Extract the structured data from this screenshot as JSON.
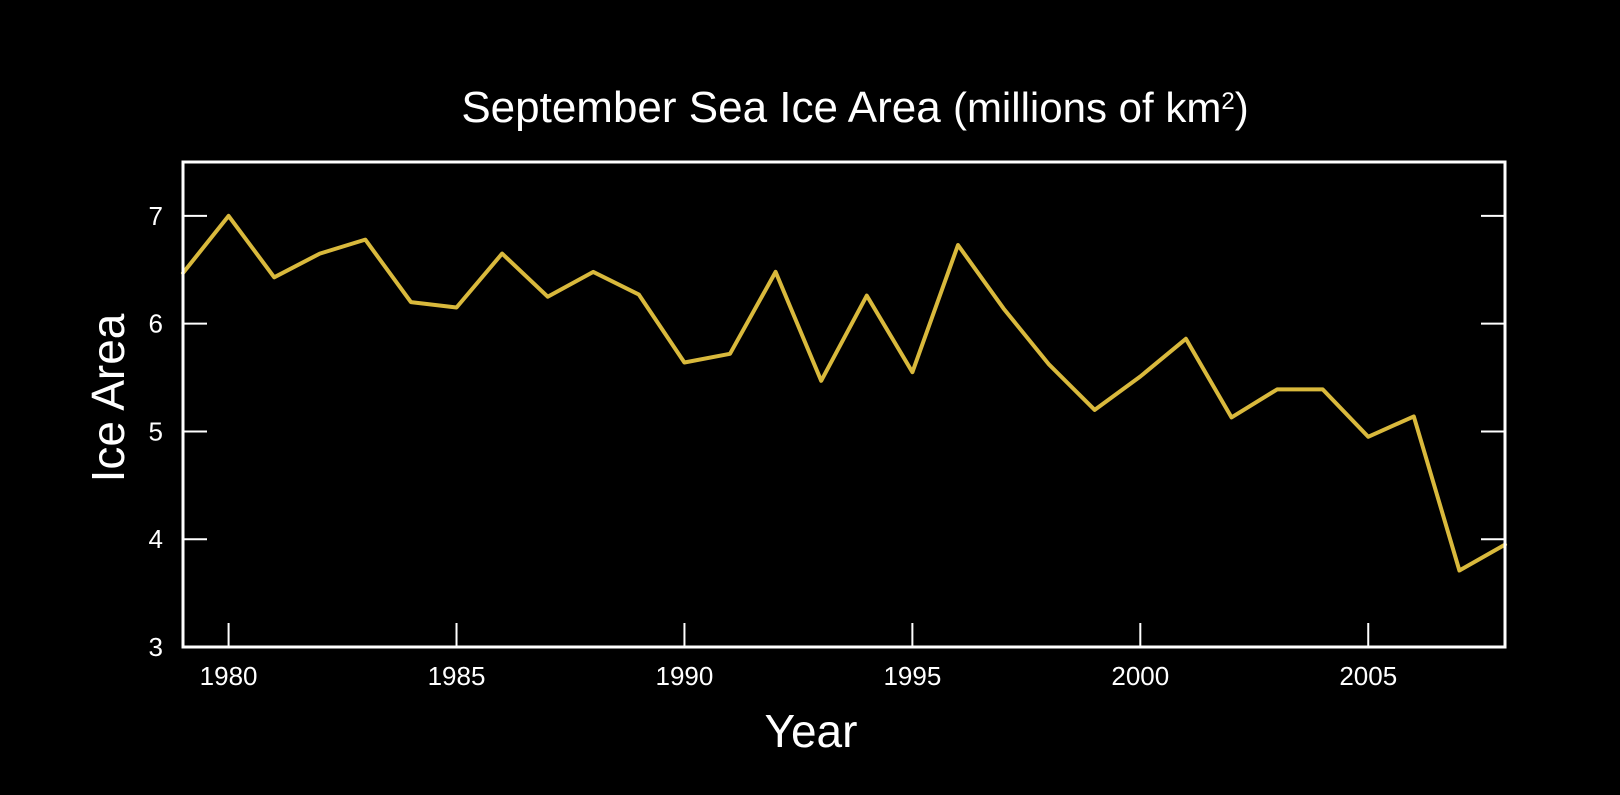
{
  "chart_data": {
    "type": "line",
    "title": "September Sea Ice Area",
    "title_units": "(millions of km",
    "title_units_sup": "2",
    "title_units_close": ")",
    "xlabel": "Year",
    "ylabel": "Ice Area",
    "xlim": [
      1979,
      2008
    ],
    "ylim": [
      3,
      7.5
    ],
    "x_ticks": [
      1980,
      1985,
      1990,
      1995,
      2000,
      2005
    ],
    "x_tick_labels": [
      "1980",
      "1985",
      "1990",
      "1995",
      "2000",
      "2005"
    ],
    "y_ticks": [
      3,
      4,
      5,
      6,
      7
    ],
    "y_tick_labels": [
      "3",
      "4",
      "5",
      "6",
      "7"
    ],
    "grid": false,
    "colors": {
      "background": "#000000",
      "frame": "#ffffff",
      "line": "#d9b93c"
    },
    "series": [
      {
        "x": [
          1979,
          1980,
          1981,
          1982,
          1983,
          1984,
          1985,
          1986,
          1987,
          1988,
          1989,
          1990,
          1991,
          1992,
          1993,
          1994,
          1995,
          1996,
          1997,
          1998,
          1999,
          2000,
          2001,
          2002,
          2003,
          2004,
          2005,
          2006,
          2007,
          2008
        ],
        "values": [
          6.47,
          7.0,
          6.43,
          6.65,
          6.78,
          6.2,
          6.15,
          6.65,
          6.25,
          6.48,
          6.27,
          5.64,
          5.72,
          6.48,
          5.47,
          6.26,
          5.55,
          6.73,
          6.14,
          5.62,
          5.2,
          5.51,
          5.86,
          5.13,
          5.39,
          5.39,
          4.95,
          5.14,
          3.71,
          3.95
        ]
      }
    ]
  }
}
